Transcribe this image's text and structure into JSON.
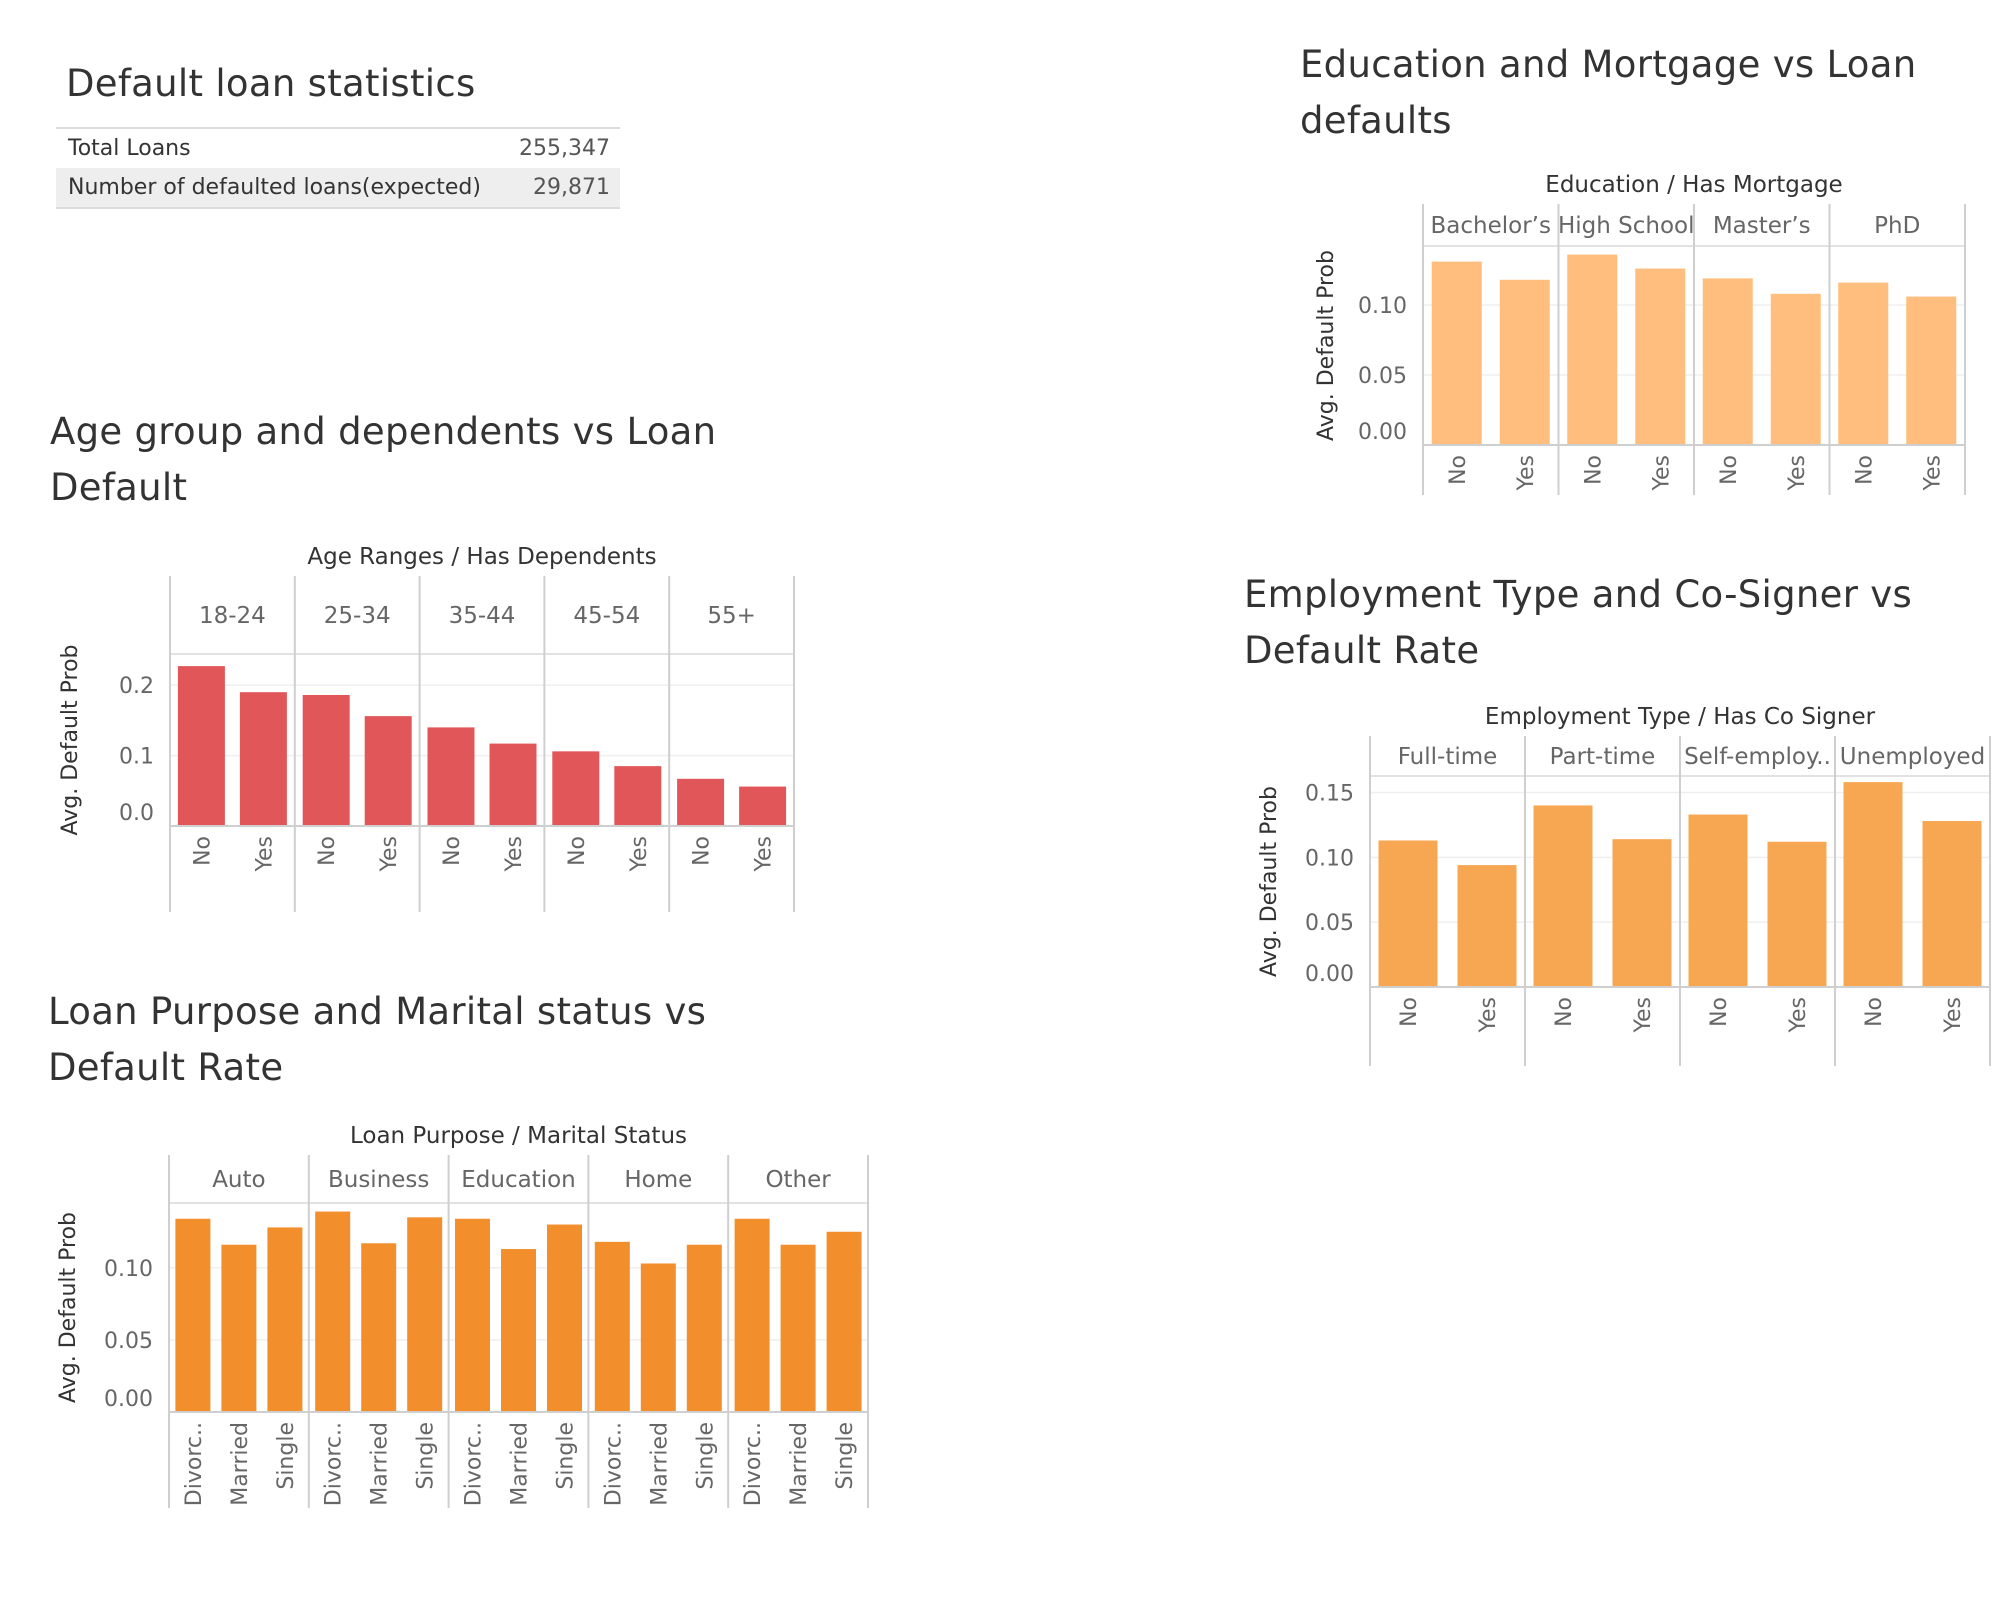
{
  "stats": {
    "title": "Default loan statistics",
    "rows": [
      {
        "label": "Total Loans",
        "value": "255,347"
      },
      {
        "label": "Number of defaulted loans(expected)",
        "value": "29,871"
      }
    ]
  },
  "sections": {
    "age": "Age group and dependents vs Loan Default",
    "purpose": "Loan Purpose and Marital status vs Default Rate",
    "education": "Education and Mortgage vs Loan defaults",
    "employment": "Employment Type and Co-Signer vs Default Rate"
  },
  "chart_data": [
    {
      "id": "age",
      "type": "bar",
      "title": "Age Ranges / Has Dependents",
      "header_left": "Age Ranges",
      "header_right": "Has Dependents",
      "ylabel": "Avg. Default Prob",
      "groups": [
        "18-24",
        "25-34",
        "35-44",
        "45-54",
        "55+"
      ],
      "subcategories": [
        "No",
        "Yes"
      ],
      "values": [
        [
          0.227,
          0.19
        ],
        [
          0.186,
          0.156
        ],
        [
          0.14,
          0.117
        ],
        [
          0.106,
          0.085
        ],
        [
          0.067,
          0.056
        ]
      ],
      "yticks": [
        0.0,
        0.1,
        0.2
      ],
      "tick_labels": [
        "0.0",
        "0.1",
        "0.2"
      ],
      "ylim": [
        0,
        0.23
      ],
      "color": "#e15759"
    },
    {
      "id": "purpose",
      "type": "bar",
      "title": "Loan Purpose / Marital Status",
      "header_left": "Loan Purpose",
      "header_right": "Marital Status",
      "ylabel": "Avg. Default Prob",
      "groups": [
        "Auto",
        "Business",
        "Education",
        "Home",
        "Other"
      ],
      "subcategories": [
        "Divorc..",
        "Married",
        "Single"
      ],
      "values": [
        [
          0.134,
          0.116,
          0.128
        ],
        [
          0.139,
          0.117,
          0.135
        ],
        [
          0.134,
          0.113,
          0.13
        ],
        [
          0.118,
          0.103,
          0.116
        ],
        [
          0.134,
          0.116,
          0.125
        ]
      ],
      "yticks": [
        0.0,
        0.05,
        0.1
      ],
      "tick_labels": [
        "0.00",
        "0.05",
        "0.10"
      ],
      "ylim": [
        0,
        0.138
      ],
      "color": "#f28e2b"
    },
    {
      "id": "education",
      "type": "bar",
      "title": "Education / Has Mortgage",
      "header_left": "Education",
      "header_right": "Has Mortgage",
      "ylabel": "Avg. Default Prob",
      "groups": [
        "Bachelor’s",
        "High School",
        "Master’s",
        "PhD"
      ],
      "subcategories": [
        "No",
        "Yes"
      ],
      "values": [
        [
          0.131,
          0.118
        ],
        [
          0.136,
          0.126
        ],
        [
          0.119,
          0.108
        ],
        [
          0.116,
          0.106
        ]
      ],
      "yticks": [
        0.0,
        0.05,
        0.1
      ],
      "tick_labels": [
        "0.00",
        "0.05",
        "0.10"
      ],
      "ylim": [
        0,
        0.135
      ],
      "color": "#ffbe7d"
    },
    {
      "id": "employment",
      "type": "bar",
      "title": "Employment Type / Has Co Signer",
      "header_left": "Employment Type",
      "header_right": "Has Co Signer",
      "ylabel": "Avg. Default Prob",
      "groups": [
        "Full-time",
        "Part-time",
        "Self-employ..",
        "Unemployed"
      ],
      "subcategories": [
        "No",
        "Yes"
      ],
      "values": [
        [
          0.113,
          0.094
        ],
        [
          0.14,
          0.114
        ],
        [
          0.133,
          0.112
        ],
        [
          0.158,
          0.128
        ]
      ],
      "yticks": [
        0.0,
        0.05,
        0.1,
        0.15
      ],
      "tick_labels": [
        "0.00",
        "0.05",
        "0.10",
        "0.15"
      ],
      "ylim": [
        0,
        0.155
      ],
      "color": "#f7a752"
    }
  ]
}
